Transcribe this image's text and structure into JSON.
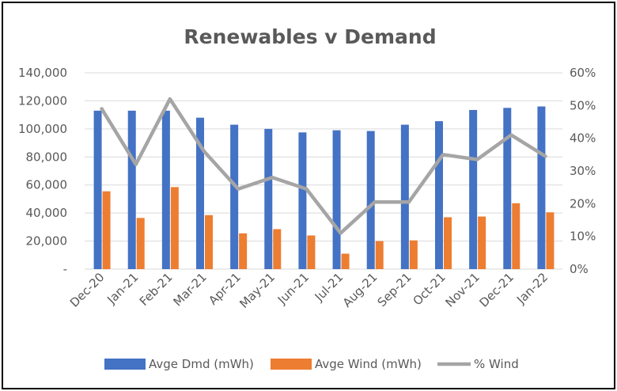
{
  "chart_data": {
    "type": "bar",
    "title": "Renewables v Demand",
    "categories": [
      "Dec-20",
      "Jan-21",
      "Feb-21",
      "Mar-21",
      "Apr-21",
      "May-21",
      "Jun-21",
      "Jul-21",
      "Aug-21",
      "Sep-21",
      "Oct-21",
      "Nov-21",
      "Dec-21",
      "Jan-22"
    ],
    "series": [
      {
        "name": "Avge Dmd (mWh)",
        "type": "bar",
        "axis": "left",
        "color": "#4472C4",
        "values": [
          113000,
          113000,
          113000,
          108000,
          103000,
          100000,
          97500,
          99000,
          98500,
          103000,
          105500,
          113500,
          115000,
          116000
        ]
      },
      {
        "name": "Avge Wind (mWh)",
        "type": "bar",
        "axis": "left",
        "color": "#ED7D31",
        "values": [
          55500,
          36500,
          58500,
          38500,
          25500,
          28500,
          24000,
          11000,
          20000,
          20500,
          37000,
          37500,
          47000,
          40500
        ]
      },
      {
        "name": "% Wind",
        "type": "line",
        "axis": "right",
        "color": "#A5A5A5",
        "values": [
          0.49,
          0.32,
          0.52,
          0.36,
          0.245,
          0.28,
          0.245,
          0.11,
          0.205,
          0.205,
          0.35,
          0.335,
          0.41,
          0.345
        ]
      }
    ],
    "y_left": {
      "min": 0,
      "max": 140000,
      "step": 20000,
      "tick_labels": [
        "-",
        "20,000",
        "40,000",
        "60,000",
        "80,000",
        "100,000",
        "120,000",
        "140,000"
      ]
    },
    "y_right": {
      "min": 0,
      "max": 0.6,
      "step": 0.1,
      "tick_labels": [
        "0%",
        "10%",
        "20%",
        "30%",
        "40%",
        "50%",
        "60%"
      ]
    },
    "grid": true,
    "legend_position": "bottom"
  }
}
